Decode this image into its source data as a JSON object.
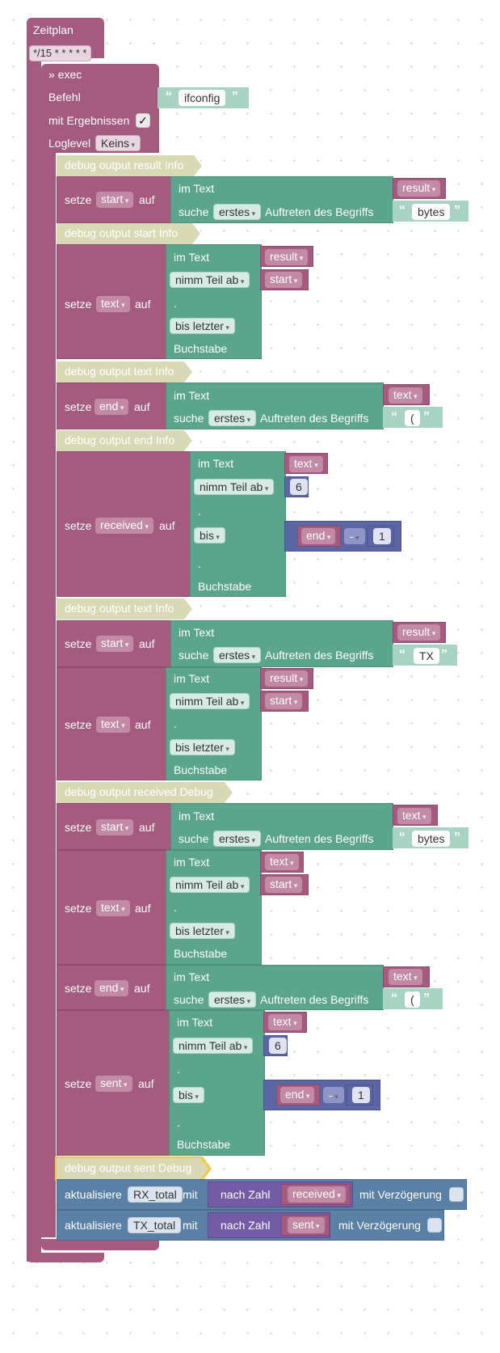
{
  "schedule": {
    "title": "Zeitplan",
    "cron": "*/15 * * * * *"
  },
  "exec": {
    "title": "» exec",
    "command_label": "Befehl",
    "command_value": "ifconfig",
    "with_results_label": "mit Ergebnissen",
    "with_results_checked": "✓",
    "loglevel_label": "Loglevel",
    "loglevel_value": "Keins"
  },
  "labels": {
    "set": "setze",
    "to": "auf",
    "in_text": "im Text",
    "find": "suche",
    "occurrence": "Auftreten des Begriffs",
    "get_sub": "nimm Teil ab",
    "dot": ".",
    "until": "bis",
    "char": "Buchstabe",
    "update": "aktualisiere",
    "with": "mit",
    "to_number": "nach Zahl",
    "with_delay": "mit Verzögerung",
    "open_quote": "“",
    "close_quote": "”"
  },
  "blocks": {
    "debug1": "debug output result Info",
    "b1_var": "start",
    "b1_text": "result",
    "b1_mode": "erstes",
    "b1_str": "bytes",
    "debug2": "debug output start Info",
    "b2_var": "text",
    "b2_text": "result",
    "b2_from": "nimm Teil ab",
    "b2_fromvar": "start",
    "b2_until": "bis letzter",
    "debug3": "debug output text Info",
    "b3_var": "end",
    "b3_text": "text",
    "b3_mode": "erstes",
    "b3_str": "(",
    "debug4": "debug output end Info",
    "b4_var": "received",
    "b4_text": "text",
    "b4_from": "nimm Teil ab",
    "b4_num": "6",
    "b4_until": "bis",
    "b4_endvar": "end",
    "b4_op": "-",
    "b4_one": "1",
    "debug5": "debug output text Info",
    "b5_var": "start",
    "b5_text": "result",
    "b5_mode": "erstes",
    "b5_str": "TX",
    "b6_var": "text",
    "b6_text": "result",
    "b6_from": "nimm Teil ab",
    "b6_fromvar": "start",
    "b6_until": "bis letzter",
    "debug6": "debug output received Debug",
    "b7_var": "start",
    "b7_text": "text",
    "b7_mode": "erstes",
    "b7_str": "bytes",
    "b8_var": "text",
    "b8_text": "text",
    "b8_from": "nimm Teil ab",
    "b8_fromvar": "start",
    "b8_until": "bis letzter",
    "b9_var": "end",
    "b9_text": "text",
    "b9_mode": "erstes",
    "b9_str": "(",
    "b10_var": "sent",
    "b10_text": "text",
    "b10_from": "nimm Teil ab",
    "b10_num": "6",
    "b10_until": "bis",
    "b10_endvar": "end",
    "b10_op": "-",
    "b10_one": "1",
    "debug7": "debug output sent Debug",
    "u1_state": "RX_total",
    "u1_var": "received",
    "u2_state": "TX_total",
    "u2_var": "sent"
  },
  "colors": {
    "logic": "#a55b80",
    "text": "#5ba58c",
    "debug": "#dad9b6",
    "states": "#5b80a5",
    "math": "#5b67a5",
    "convert": "#745ba5"
  }
}
